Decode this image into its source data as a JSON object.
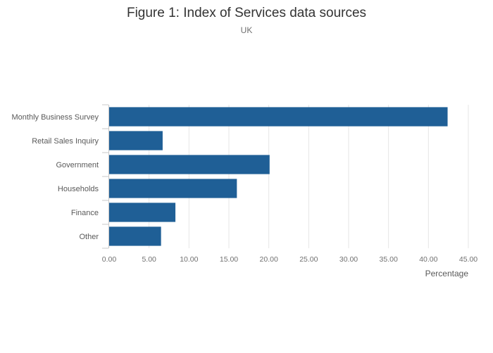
{
  "chart_data": {
    "type": "bar",
    "orientation": "horizontal",
    "title": "Figure 1: Index of Services data sources",
    "subtitle": "UK",
    "categories": [
      "Monthly Business Survey",
      "Retail Sales Inquiry",
      "Government",
      "Households",
      "Finance",
      "Other"
    ],
    "values": [
      42.4,
      6.7,
      20.1,
      16.0,
      8.3,
      6.5
    ],
    "xlabel": "Percentage",
    "ylabel": "",
    "xlim": [
      0,
      45
    ],
    "xticks": [
      "0.00",
      "5.00",
      "10.00",
      "15.00",
      "20.00",
      "25.00",
      "30.00",
      "35.00",
      "40.00",
      "45.00"
    ],
    "grid": true,
    "legend": "none",
    "bar_color": "#1f5f96"
  }
}
